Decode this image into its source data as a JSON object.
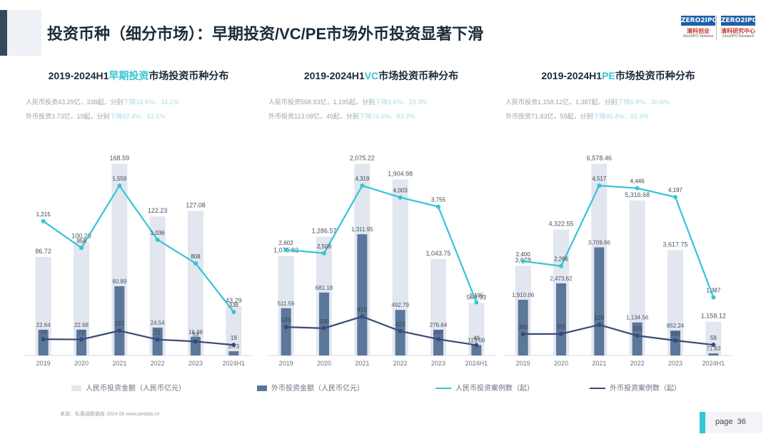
{
  "header": {
    "title": "投资币种（细分市场）：早期投资/VC/PE市场外币投资显著下滑",
    "logo1": {
      "mark": "ZERO2IPO",
      "cn": "清科创业",
      "en": "Zero2IPO Ventures"
    },
    "logo2": {
      "mark": "ZERO2IPO",
      "cn": "清科研究中心",
      "en": "Zero2IPO Research"
    }
  },
  "colors": {
    "rmb_bar": "#e2e6ee",
    "fx_bar": "#5b7799",
    "rmb_line": "#33c5d6",
    "fx_line": "#3a4a78",
    "title_highlight": "#33c5d6"
  },
  "panels": [
    {
      "title_prefix": "2019-2024H1",
      "title_highlight": "早期投资",
      "title_suffix": "市场投资币种分布",
      "summary_line1_dark": "人民币投资43.29亿，338起，分别",
      "summary_line1_light": "下降16.6%、34.1%",
      "summary_line2_dark": "外币投资3.73亿，19起，分别",
      "summary_line2_light": "下降82.4%、62.5%"
    },
    {
      "title_prefix": "2019-2024H1",
      "title_highlight": "VC",
      "title_suffix": "市场投资币种分布",
      "summary_line1_dark": "人民币投资568.93亿，1,195起，分别",
      "summary_line1_light": "下降9.6%、29.3%",
      "summary_line2_dark": "外币投资113.08亿，49起，分别",
      "summary_line2_light": "下降74.6%、83.3%"
    },
    {
      "title_prefix": "2019-2024H1",
      "title_highlight": "PE",
      "title_suffix": "市场投资币种分布",
      "summary_line1_dark": "人民币投资1,158.12亿，1,387起，分别",
      "summary_line1_light": "下降6.8%、30.6%",
      "summary_line2_dark": "外币投资71.83亿，59起，分别",
      "summary_line2_light": "下降85.4%、82.4%"
    }
  ],
  "chart_data": [
    {
      "type": "bar",
      "categories": [
        "2019",
        "2020",
        "2021",
        "2022",
        "2023",
        "2024H1"
      ],
      "series": [
        {
          "name": "人民币投资金额（人民币亿元）",
          "kind": "bar",
          "values": [
            86.72,
            100.23,
            168.59,
            122.23,
            127.08,
            43.29
          ]
        },
        {
          "name": "外币投资金额（人民币亿元）",
          "kind": "bar",
          "values": [
            22.64,
            22.68,
            60.89,
            24.54,
            16.38,
            3.73
          ]
        },
        {
          "name": "人民币投资案例数（起）",
          "kind": "line",
          "values": [
            1215,
            958,
            1559,
            1036,
            808,
            338
          ]
        },
        {
          "name": "外币投资案例数（起）",
          "kind": "line",
          "values": [
            74,
            72,
            157,
            71,
            53,
            19
          ]
        }
      ]
    },
    {
      "type": "bar",
      "categories": [
        "2019",
        "2020",
        "2021",
        "2022",
        "2023",
        "2024H1"
      ],
      "series": [
        {
          "name": "人民币投资金额（人民币亿元）",
          "kind": "bar",
          "values": [
            1075.82,
            1286.57,
            2075.22,
            1904.98,
            1043.75,
            568.93
          ]
        },
        {
          "name": "外币投资金额（人民币亿元）",
          "kind": "bar",
          "values": [
            511.56,
            681.18,
            1311.95,
            492.79,
            276.64,
            113.08
          ]
        },
        {
          "name": "人民币投资案例数（起）",
          "kind": "line",
          "values": [
            2602,
            2509,
            4319,
            4003,
            3755,
            1195
          ]
        },
        {
          "name": "外币投资案例数（起）",
          "kind": "line",
          "values": [
            533,
            500,
            813,
            423,
            207,
            49
          ]
        }
      ]
    },
    {
      "type": "bar",
      "categories": [
        "2019",
        "2020",
        "2021",
        "2022",
        "2023",
        "2024H1"
      ],
      "series": [
        {
          "name": "人民币投资金额（人民币亿元）",
          "kind": "bar",
          "values": [
            3078,
            4322.55,
            6578.46,
            5316.68,
            3617.75,
            1158.12
          ]
        },
        {
          "name": "外币投资金额（人民币亿元）",
          "kind": "bar",
          "values": [
            1910.06,
            2473.62,
            3709.66,
            1134.56,
            852.24,
            71.83
          ]
        },
        {
          "name": "人民币投资案例数（起）",
          "kind": "line",
          "values": [
            2400,
            2266,
            4517,
            4446,
            4197,
            1387
          ]
        },
        {
          "name": "外币投资案例数（起）",
          "kind": "line",
          "values": [
            360,
            365,
            620,
            315,
            180,
            59
          ]
        }
      ]
    }
  ],
  "legend": {
    "rmb_amount": "人民币投资金额（人民币亿元）",
    "fx_amount": "外币投资金额（人民币亿元）",
    "rmb_count": "人民币投资案例数（起）",
    "fx_count": "外币投资案例数（起）"
  },
  "footer": {
    "source": "来源：私募通数据库 2024.08 www.pedata.cn",
    "page_label": "page",
    "page_number": "36"
  }
}
